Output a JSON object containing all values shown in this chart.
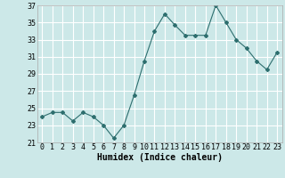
{
  "x": [
    0,
    1,
    2,
    3,
    4,
    5,
    6,
    7,
    8,
    9,
    10,
    11,
    12,
    13,
    14,
    15,
    16,
    17,
    18,
    19,
    20,
    21,
    22,
    23
  ],
  "y": [
    24,
    24.5,
    24.5,
    23.5,
    24.5,
    24,
    23,
    21.5,
    23,
    26.5,
    30.5,
    34,
    36,
    34.7,
    33.5,
    33.5,
    33.5,
    37,
    35,
    33,
    32,
    30.5,
    29.5,
    31.5
  ],
  "xlabel": "Humidex (Indice chaleur)",
  "ylim": [
    21,
    37
  ],
  "xlim": [
    -0.5,
    23.5
  ],
  "yticks": [
    21,
    23,
    25,
    27,
    29,
    31,
    33,
    35,
    37
  ],
  "xticks": [
    0,
    1,
    2,
    3,
    4,
    5,
    6,
    7,
    8,
    9,
    10,
    11,
    12,
    13,
    14,
    15,
    16,
    17,
    18,
    19,
    20,
    21,
    22,
    23
  ],
  "line_color": "#2d6e6e",
  "marker": "D",
  "marker_size": 2,
  "bg_color": "#cce8e8",
  "grid_color": "#ffffff",
  "tick_fontsize": 6,
  "xlabel_fontsize": 7,
  "spine_color": "#aaaaaa"
}
